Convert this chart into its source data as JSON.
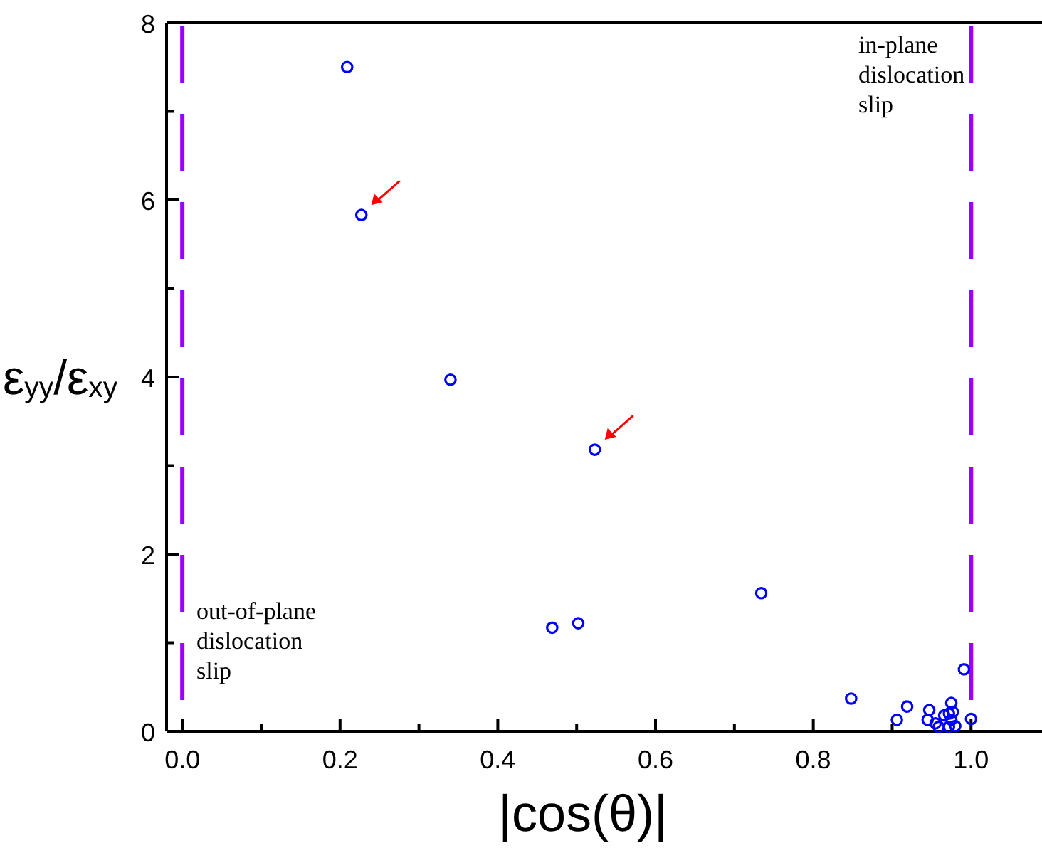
{
  "chart_data": {
    "type": "scatter",
    "xlabel": "|cos(θ)|",
    "ylabel": "ε$_{yy}$/ε$_{xy}$",
    "x": [
      0.209,
      0.227,
      0.34,
      0.523,
      0.469,
      0.502,
      0.734,
      0.848,
      0.906,
      0.919,
      0.947,
      0.945,
      0.955,
      0.959,
      0.966,
      0.972,
      0.975,
      0.977,
      0.975,
      0.972,
      0.98,
      0.991,
      1.0
    ],
    "values": [
      7.5,
      5.83,
      3.97,
      3.18,
      1.17,
      1.22,
      1.56,
      0.37,
      0.13,
      0.28,
      0.24,
      0.13,
      0.09,
      0.05,
      0.18,
      0.2,
      0.32,
      0.22,
      0.13,
      0.05,
      0.06,
      0.7,
      0.14
    ],
    "color": "#0000ff",
    "marker": "circle",
    "xlim": [
      -0.02,
      1.09
    ],
    "ylim": [
      0,
      8
    ],
    "xticks": [
      {
        "value": 0,
        "label": "0.0"
      },
      {
        "value": 0.1,
        "label": null
      },
      {
        "value": 0.2,
        "label": "0.2"
      },
      {
        "value": 0.3,
        "label": null
      },
      {
        "value": 0.4,
        "label": "0.4"
      },
      {
        "value": 0.5,
        "label": null
      },
      {
        "value": 0.6,
        "label": "0.6"
      },
      {
        "value": 0.7,
        "label": null
      },
      {
        "value": 0.8,
        "label": "0.8"
      },
      {
        "value": 0.9,
        "label": null
      },
      {
        "value": 1,
        "label": "1.0"
      }
    ],
    "yticks": [
      0,
      {
        "value": 1,
        "label": null
      },
      2,
      {
        "value": 3,
        "label": null
      },
      4,
      {
        "value": 5,
        "label": null
      },
      6,
      {
        "value": 7,
        "label": null
      },
      8
    ],
    "ref_lines": [
      {
        "axis": "x",
        "value": 0,
        "color": "#9900ff",
        "line_style": "dashed"
      },
      {
        "axis": "x",
        "value": 1,
        "color": "#9900ff",
        "line_style": "dashed"
      }
    ],
    "annotations": [
      "in-plane dislocation slip",
      "out-of-plane dislocation slip"
    ],
    "grid": false
  }
}
